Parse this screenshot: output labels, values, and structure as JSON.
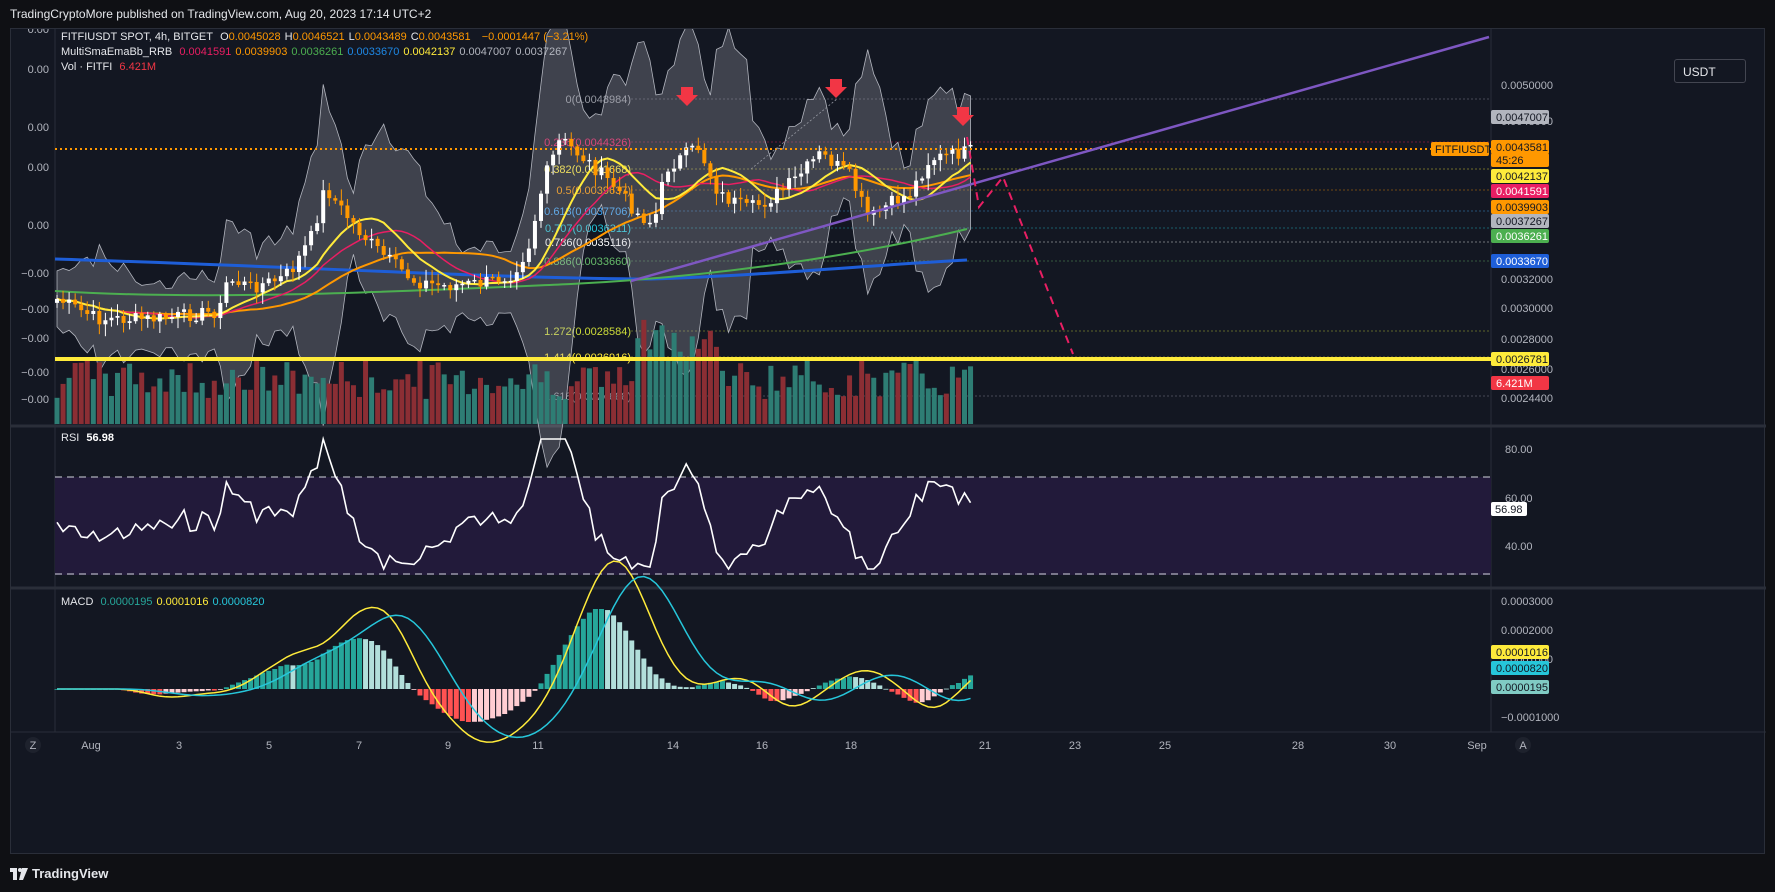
{
  "header": {
    "publisher": "TradingCryptoMore published on TradingView.com, Aug 20, 2023 17:14 UTC+2"
  },
  "legend": {
    "symbol": "FITFIUSDT SPOT, 4h, BITGET",
    "ohlc": [
      {
        "key": "O",
        "value": "0.0045028"
      },
      {
        "key": "H",
        "value": "0.0046521"
      },
      {
        "key": "L",
        "value": "0.0043489"
      },
      {
        "key": "C",
        "value": "0.0043581"
      }
    ],
    "change": "−0.0001447 (−3.21%)",
    "indicator_name": "MultiSmaEmaBb_RRB",
    "indicator_values": [
      {
        "value": "0.0041591",
        "color": "#e91e63"
      },
      {
        "value": "0.0039903",
        "color": "#ff9800"
      },
      {
        "value": "0.0036261",
        "color": "#4caf50"
      },
      {
        "value": "0.0033670",
        "color": "#1e88e5"
      },
      {
        "value": "0.0042137",
        "color": "#ffeb3b"
      },
      {
        "value": "0.0047007",
        "color": "#b2b5be"
      },
      {
        "value": "0.0037267",
        "color": "#b2b5be"
      }
    ],
    "volume_label": "Vol · FITFI",
    "volume_value": "6.421M"
  },
  "currency_selector": "USDT",
  "price_axis": {
    "ticks": [
      "0.0050000",
      "0.0048000",
      "0.0032000",
      "0.0030000",
      "0.0028000",
      "0.0026000",
      "0.0024400"
    ],
    "left_ticks": [
      "0.00",
      "0.00",
      "0.00",
      "0.00",
      "0.00",
      "−0.00",
      "−0.00",
      "−0.00",
      "−0.00",
      "−0.00"
    ],
    "price_tags": [
      {
        "value": "0.0047007",
        "bg": "#b2b5be",
        "fg": "#131722"
      },
      {
        "value": "0.0043581",
        "bg": "#ff9800",
        "fg": "#131722"
      },
      {
        "value": "45:26",
        "bg": "#ff9800",
        "fg": "#131722"
      },
      {
        "value": "0.0042137",
        "bg": "#ffeb3b",
        "fg": "#131722"
      },
      {
        "value": "0.0041591",
        "bg": "#e91e63",
        "fg": "#ffffff"
      },
      {
        "value": "0.0039903",
        "bg": "#ff9800",
        "fg": "#131722"
      },
      {
        "value": "0.0037267",
        "bg": "#b2b5be",
        "fg": "#131722"
      },
      {
        "value": "0.0036261",
        "bg": "#4caf50",
        "fg": "#ffffff"
      },
      {
        "value": "0.0033670",
        "bg": "#1e5ed8",
        "fg": "#ffffff"
      },
      {
        "value": "0.0026781",
        "bg": "#ffeb3b",
        "fg": "#131722"
      },
      {
        "value": "6.421M",
        "bg": "#f23645",
        "fg": "#ffffff"
      }
    ],
    "symbol_tag": "FITFIUSDT"
  },
  "fib_levels": [
    {
      "label": "0(0.0048984)",
      "color": "#9598a1"
    },
    {
      "label": "0.236(0.0044326)",
      "color": "#e91e63"
    },
    {
      "label": "0.382(0.0041668)",
      "color": "#ffeb3b"
    },
    {
      "label": "0.5(0.0039637)",
      "color": "#ff9800"
    },
    {
      "label": "0.618(0.0037706)",
      "color": "#42a5f5"
    },
    {
      "label": "0.707(0.0036311)",
      "color": "#26c6da"
    },
    {
      "label": "0.786(0.0035116)",
      "color": "#ffffff"
    },
    {
      "label": "0.886(0.0033660)",
      "color": "#66bb6a"
    },
    {
      "label": "1.272(0.0028584)",
      "color": "#cddc39"
    },
    {
      "label": "1.414(0.0026916)",
      "color": "#ffeb3b"
    },
    {
      "label": "1.618(0.0024688)",
      "color": "#9598a1"
    }
  ],
  "rsi": {
    "label": "RSI",
    "value": "56.98",
    "ticks": [
      "80.00",
      "60.00",
      "40.00"
    ]
  },
  "macd": {
    "label": "MACD",
    "values": [
      {
        "value": "0.0000195",
        "color": "#26a69a"
      },
      {
        "value": "0.0001016",
        "color": "#ffeb3b"
      },
      {
        "value": "0.0000820",
        "color": "#26c6da"
      }
    ],
    "ticks": [
      "0.0003000",
      "0.0002000",
      "0.0001000",
      "−0.0001000"
    ],
    "tags": [
      {
        "value": "0.0001016",
        "bg": "#ffeb3b",
        "fg": "#131722"
      },
      {
        "value": "0.0000820",
        "bg": "#26c6da",
        "fg": "#131722"
      },
      {
        "value": "0.0000195",
        "bg": "#80cbc4",
        "fg": "#131722"
      }
    ]
  },
  "time_axis": {
    "labels": [
      "Aug",
      "3",
      "5",
      "7",
      "9",
      "11",
      "14",
      "16",
      "18",
      "21",
      "23",
      "25",
      "28",
      "30",
      "Sep"
    ]
  },
  "footer": {
    "brand": "TradingView",
    "z_label": "Z",
    "a_label": "A"
  },
  "colors": {
    "background": "#131722",
    "bull": "#ffffff",
    "bear": "#ff9800",
    "vol_bull": "#2e7d74",
    "vol_bear": "#8b2e34",
    "rsi_band": "#2a1f45",
    "projection": "#e91e63",
    "trendline": "#7e57c2"
  }
}
